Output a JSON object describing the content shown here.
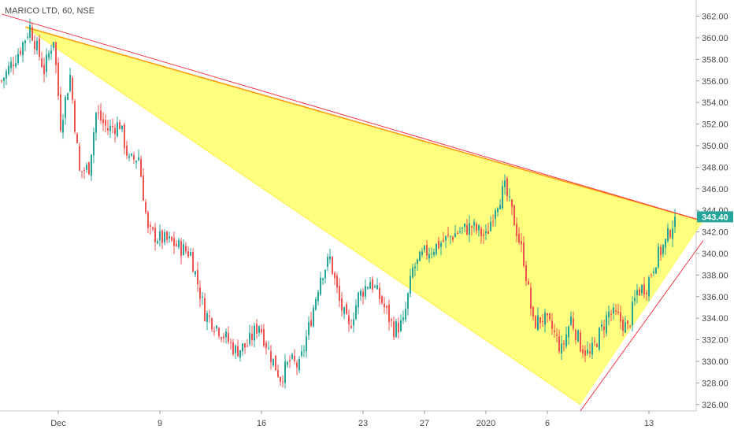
{
  "chart_data": {
    "type": "candlestick",
    "title": "MARICO LTD, 60, NSE",
    "y_axis": {
      "ticks": [
        "362.00",
        "360.00",
        "358.00",
        "356.00",
        "354.00",
        "352.00",
        "350.00",
        "348.00",
        "346.00",
        "344.00",
        "342.00",
        "340.00",
        "338.00",
        "336.00",
        "334.00",
        "332.00",
        "330.00",
        "328.00",
        "326.00"
      ],
      "ylim": [
        325.4,
        363.5
      ],
      "position": "right"
    },
    "x_axis": {
      "labels": [
        {
          "text": "Dec",
          "index": 24
        },
        {
          "text": "9",
          "index": 67
        },
        {
          "text": "16",
          "index": 110
        },
        {
          "text": "23",
          "index": 153
        },
        {
          "text": "27",
          "index": 179
        },
        {
          "text": "2020",
          "index": 205
        },
        {
          "text": "6",
          "index": 231
        },
        {
          "text": "13",
          "index": 274
        }
      ]
    },
    "current_price": {
      "label": "343.40",
      "value": 343.4,
      "color": "#26a69a"
    },
    "colors": {
      "up": "#26a69a",
      "down": "#ef5350",
      "triangle_fill": "#ffff00",
      "triangle_edge": "#ff9800",
      "trendline": "#f23645"
    },
    "pattern": {
      "type": "triangle",
      "vertices": [
        {
          "index": 10,
          "price": 361.0
        },
        {
          "index": 297,
          "price": 343.0
        },
        {
          "index": 245,
          "price": 326.0
        }
      ]
    },
    "trendlines": [
      {
        "from": {
          "index": 0,
          "price": 362.2
        },
        "to": {
          "index": 297,
          "price": 343.0
        }
      },
      {
        "from": {
          "index": 245,
          "price": 325.4
        },
        "to": {
          "index": 297,
          "price": 341.2
        }
      }
    ],
    "anchors": [
      {
        "index": 0,
        "price": 356.0
      },
      {
        "index": 8,
        "price": 359.0
      },
      {
        "index": 12,
        "price": 361.0
      },
      {
        "index": 18,
        "price": 357.0
      },
      {
        "index": 22,
        "price": 360.0
      },
      {
        "index": 25,
        "price": 352.0
      },
      {
        "index": 29,
        "price": 356.5
      },
      {
        "index": 33,
        "price": 347.5
      },
      {
        "index": 37,
        "price": 348.0
      },
      {
        "index": 40,
        "price": 353.0
      },
      {
        "index": 45,
        "price": 351.5
      },
      {
        "index": 50,
        "price": 352.0
      },
      {
        "index": 54,
        "price": 348.5
      },
      {
        "index": 58,
        "price": 349.0
      },
      {
        "index": 62,
        "price": 342.0
      },
      {
        "index": 66,
        "price": 341.5
      },
      {
        "index": 72,
        "price": 341.0
      },
      {
        "index": 80,
        "price": 340.0
      },
      {
        "index": 86,
        "price": 334.5
      },
      {
        "index": 92,
        "price": 333.0
      },
      {
        "index": 99,
        "price": 331.0
      },
      {
        "index": 104,
        "price": 331.5
      },
      {
        "index": 109,
        "price": 333.5
      },
      {
        "index": 113,
        "price": 331.0
      },
      {
        "index": 118,
        "price": 328.5
      },
      {
        "index": 122,
        "price": 330.0
      },
      {
        "index": 126,
        "price": 329.5
      },
      {
        "index": 131,
        "price": 334.0
      },
      {
        "index": 135,
        "price": 338.0
      },
      {
        "index": 139,
        "price": 339.5
      },
      {
        "index": 143,
        "price": 335.5
      },
      {
        "index": 147,
        "price": 333.0
      },
      {
        "index": 151,
        "price": 336.0
      },
      {
        "index": 156,
        "price": 337.5
      },
      {
        "index": 161,
        "price": 335.5
      },
      {
        "index": 166,
        "price": 333.0
      },
      {
        "index": 170,
        "price": 333.5
      },
      {
        "index": 174,
        "price": 338.5
      },
      {
        "index": 179,
        "price": 340.0
      },
      {
        "index": 186,
        "price": 341.0
      },
      {
        "index": 193,
        "price": 342.0
      },
      {
        "index": 199,
        "price": 342.5
      },
      {
        "index": 205,
        "price": 341.5
      },
      {
        "index": 209,
        "price": 344.5
      },
      {
        "index": 213,
        "price": 346.0
      },
      {
        "index": 217,
        "price": 343.0
      },
      {
        "index": 221,
        "price": 339.5
      },
      {
        "index": 225,
        "price": 333.5
      },
      {
        "index": 229,
        "price": 334.0
      },
      {
        "index": 233,
        "price": 333.0
      },
      {
        "index": 237,
        "price": 331.0
      },
      {
        "index": 241,
        "price": 334.0
      },
      {
        "index": 245,
        "price": 331.5
      },
      {
        "index": 249,
        "price": 330.5
      },
      {
        "index": 253,
        "price": 332.5
      },
      {
        "index": 257,
        "price": 334.5
      },
      {
        "index": 261,
        "price": 334.0
      },
      {
        "index": 265,
        "price": 333.0
      },
      {
        "index": 269,
        "price": 336.5
      },
      {
        "index": 273,
        "price": 337.0
      },
      {
        "index": 277,
        "price": 339.5
      },
      {
        "index": 281,
        "price": 341.0
      },
      {
        "index": 285,
        "price": 343.4
      }
    ]
  }
}
